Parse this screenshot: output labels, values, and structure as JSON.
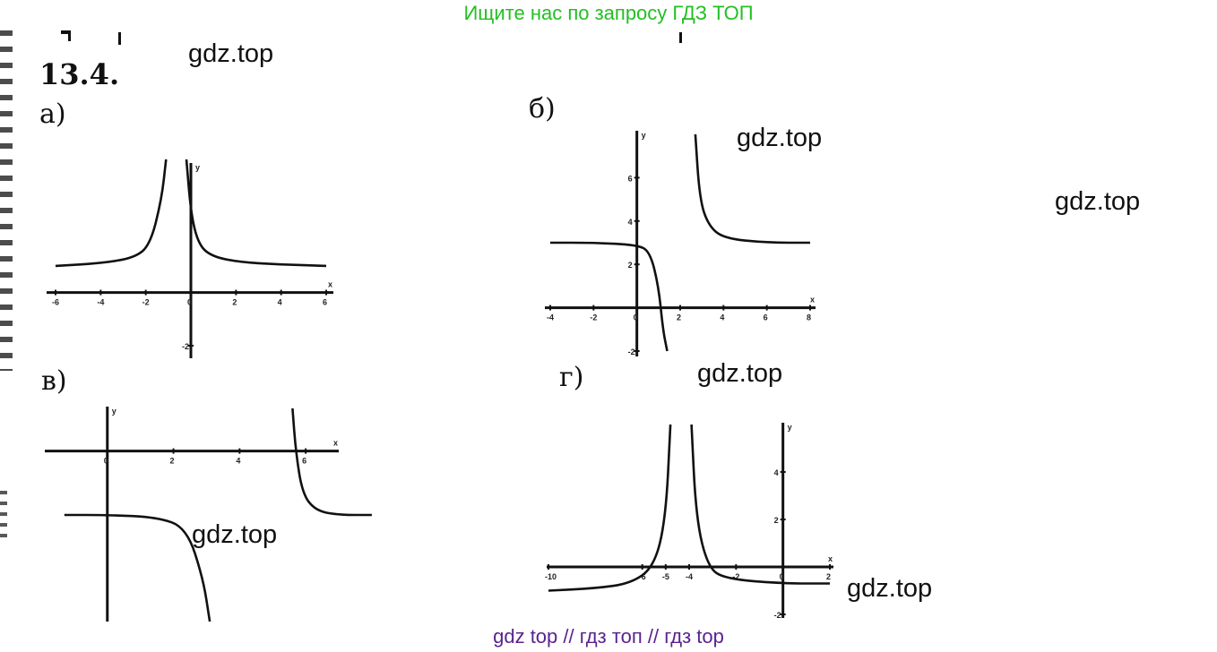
{
  "banner": "Ищите нас по запросу ГДЗ ТОП",
  "footer": "gdz top  //  гдз топ  //  гдз top",
  "problem_number": "13.4.",
  "watermark": "gdz.top",
  "colors": {
    "banner": "#22c022",
    "footer": "#5a2390",
    "ink": "#111111"
  },
  "chart_data": [
    {
      "id": "a",
      "label": "а)",
      "type": "line",
      "title": "",
      "xlabel": "x",
      "ylabel": "y",
      "xlim": [
        -6,
        6
      ],
      "ylim": [
        -2,
        5
      ],
      "x_ticks": [
        "-6",
        "-4",
        "-2",
        "0",
        "2",
        "4",
        "6"
      ],
      "y_ticks": [
        "-2"
      ],
      "asymptotes": {
        "vertical": [
          -0.5
        ],
        "horizontal": [
          1
        ]
      },
      "series": [
        {
          "name": "left branch",
          "x": [
            -6,
            -4,
            -2.5,
            -1.8,
            -1.3,
            -1.1
          ],
          "y": [
            1,
            1.1,
            1.3,
            1.8,
            3.5,
            5
          ]
        },
        {
          "name": "right branch",
          "x": [
            -0.2,
            0,
            0.3,
            0.8,
            2,
            4,
            6
          ],
          "y": [
            5,
            3,
            1.9,
            1.4,
            1.15,
            1.05,
            1
          ]
        }
      ]
    },
    {
      "id": "b",
      "label": "б)",
      "type": "line",
      "title": "",
      "xlabel": "x",
      "ylabel": "y",
      "xlim": [
        -4,
        8
      ],
      "ylim": [
        -2,
        8
      ],
      "x_ticks": [
        "-4",
        "-2",
        "0",
        "2",
        "4",
        "6",
        "8"
      ],
      "y_ticks": [
        "2",
        "4",
        "6",
        "-2"
      ],
      "asymptotes": {
        "vertical": [
          1.5
        ],
        "horizontal": [
          3
        ]
      },
      "series": [
        {
          "name": "left branch",
          "x": [
            -4,
            -2,
            0,
            0.6,
            1,
            1.2,
            1.4
          ],
          "y": [
            3,
            3,
            2.9,
            2.6,
            1,
            -1,
            -2
          ]
        },
        {
          "name": "right branch",
          "x": [
            2.7,
            2.9,
            3.3,
            4,
            6,
            8
          ],
          "y": [
            8,
            5,
            3.8,
            3.2,
            3,
            3
          ]
        }
      ]
    },
    {
      "id": "v",
      "label": "в)",
      "type": "line",
      "title": "",
      "xlabel": "x",
      "ylabel": "y",
      "xlim": [
        -2,
        7
      ],
      "ylim": [
        -8,
        2
      ],
      "x_ticks": [
        "0",
        "2",
        "4",
        "6"
      ],
      "y_ticks": [],
      "asymptotes": {
        "vertical": [
          3.3
        ],
        "horizontal": [
          -3
        ]
      },
      "series": [
        {
          "name": "left branch",
          "x": [
            -1.3,
            0,
            1.5,
            2.4,
            2.9,
            3.1
          ],
          "y": [
            -3,
            -3,
            -3.1,
            -3.6,
            -6,
            -8
          ]
        },
        {
          "name": "right branch",
          "x": [
            5.6,
            5.7,
            5.9,
            6.3,
            7,
            8
          ],
          "y": [
            2,
            0,
            -2,
            -2.8,
            -3,
            -3
          ]
        }
      ]
    },
    {
      "id": "g",
      "label": "г)",
      "type": "line",
      "title": "",
      "xlabel": "x",
      "ylabel": "y",
      "xlim": [
        -10,
        2
      ],
      "ylim": [
        -2,
        6
      ],
      "x_ticks": [
        "-10",
        "-6",
        "-5",
        "-4",
        "-2",
        "0",
        "2"
      ],
      "y_ticks": [
        "4",
        "2",
        "-2"
      ],
      "asymptotes": {
        "vertical": [
          -4
        ],
        "horizontal": [
          -0.6
        ]
      },
      "series": [
        {
          "name": "left branch",
          "x": [
            -10,
            -8,
            -6.5,
            -5.5,
            -5,
            -4.8
          ],
          "y": [
            -1,
            -0.9,
            -0.7,
            0,
            2,
            6
          ]
        },
        {
          "name": "right branch",
          "x": [
            -3.9,
            -3.7,
            -3.2,
            -2.5,
            0,
            2
          ],
          "y": [
            6,
            2,
            0,
            -0.5,
            -0.7,
            -0.7
          ]
        }
      ]
    }
  ]
}
